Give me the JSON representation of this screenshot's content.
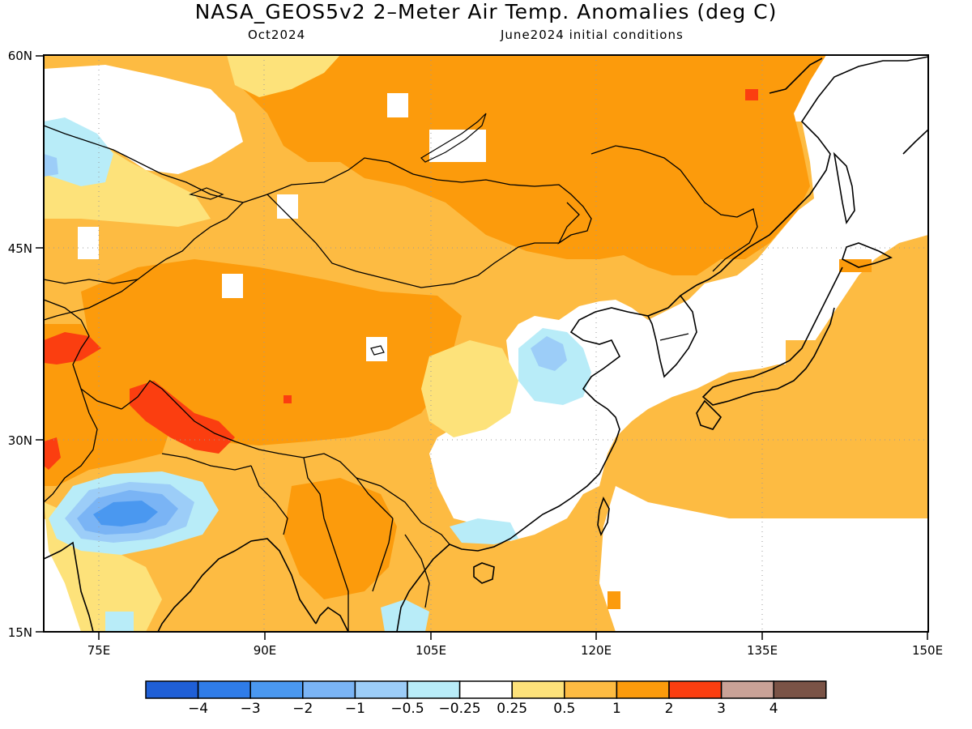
{
  "header": {
    "title": "NASA_GEOS5v2 2–Meter Air Temp. Anomalies (deg C)",
    "valid_month": "Oct2024",
    "init": "June2024 initial conditions"
  },
  "map": {
    "lat_labels": [
      "60N",
      "45N",
      "30N",
      "15N"
    ],
    "lon_labels": [
      "75E",
      "90E",
      "105E",
      "120E",
      "135E",
      "150E"
    ],
    "lat_range": [
      15,
      60
    ],
    "lon_range": [
      70,
      150
    ],
    "gridlines": true
  },
  "colorbar": {
    "colors": [
      "#1f5fd6",
      "#2f7ce8",
      "#4a98f0",
      "#7ab4f5",
      "#9ccdf8",
      "#b8ecf8",
      "#ffffff",
      "#fde27a",
      "#fdbb42",
      "#fc9b0c",
      "#fb3e10",
      "#c9a297",
      "#7a5346"
    ],
    "labels": [
      "−4",
      "−3",
      "−2",
      "−1",
      "−0.5",
      "−0.25",
      "0.25",
      "0.5",
      "1",
      "2",
      "3",
      "4"
    ]
  }
}
